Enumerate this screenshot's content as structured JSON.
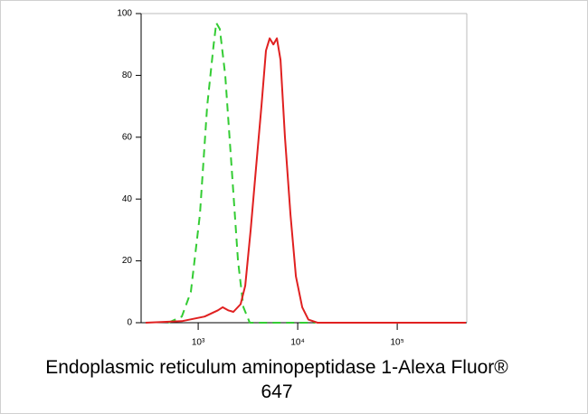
{
  "chart_data": {
    "type": "line",
    "xlabel": "Endoplasmic reticulum aminopeptidase 1-Alexa Fluor® 647",
    "xscale": "log",
    "xlim": [
      267,
      500000
    ],
    "ylim": [
      0,
      100
    ],
    "xticks": [
      {
        "value": 1000,
        "label": "10³"
      },
      {
        "value": 10000,
        "label": "10⁴"
      },
      {
        "value": 100000,
        "label": "10⁵"
      }
    ],
    "yticks": [
      0,
      20,
      40,
      60,
      80,
      100
    ],
    "series": [
      {
        "color": "#33cc33",
        "dash": true,
        "x": [
          500,
          685,
          845,
          1040,
          1230,
          1430,
          1520,
          1650,
          1870,
          2170,
          2510,
          2850,
          3300,
          15000
        ],
        "values": [
          0,
          2,
          10,
          35,
          70,
          90,
          97,
          95,
          80,
          50,
          20,
          5,
          0,
          0
        ]
      },
      {
        "color": "#e02020",
        "dash": false,
        "x": [
          297,
          685,
          1160,
          1580,
          1760,
          2000,
          2260,
          2670,
          2970,
          3370,
          3810,
          4320,
          4800,
          5230,
          5690,
          6180,
          6720,
          7450,
          8450,
          9600,
          11100,
          12800,
          15800,
          490000
        ],
        "values": [
          0,
          0.5,
          2,
          4,
          5,
          4,
          3.5,
          6,
          12,
          30,
          50,
          70,
          88,
          92,
          90,
          92,
          85,
          60,
          35,
          15,
          5,
          1,
          0,
          0
        ]
      }
    ]
  }
}
